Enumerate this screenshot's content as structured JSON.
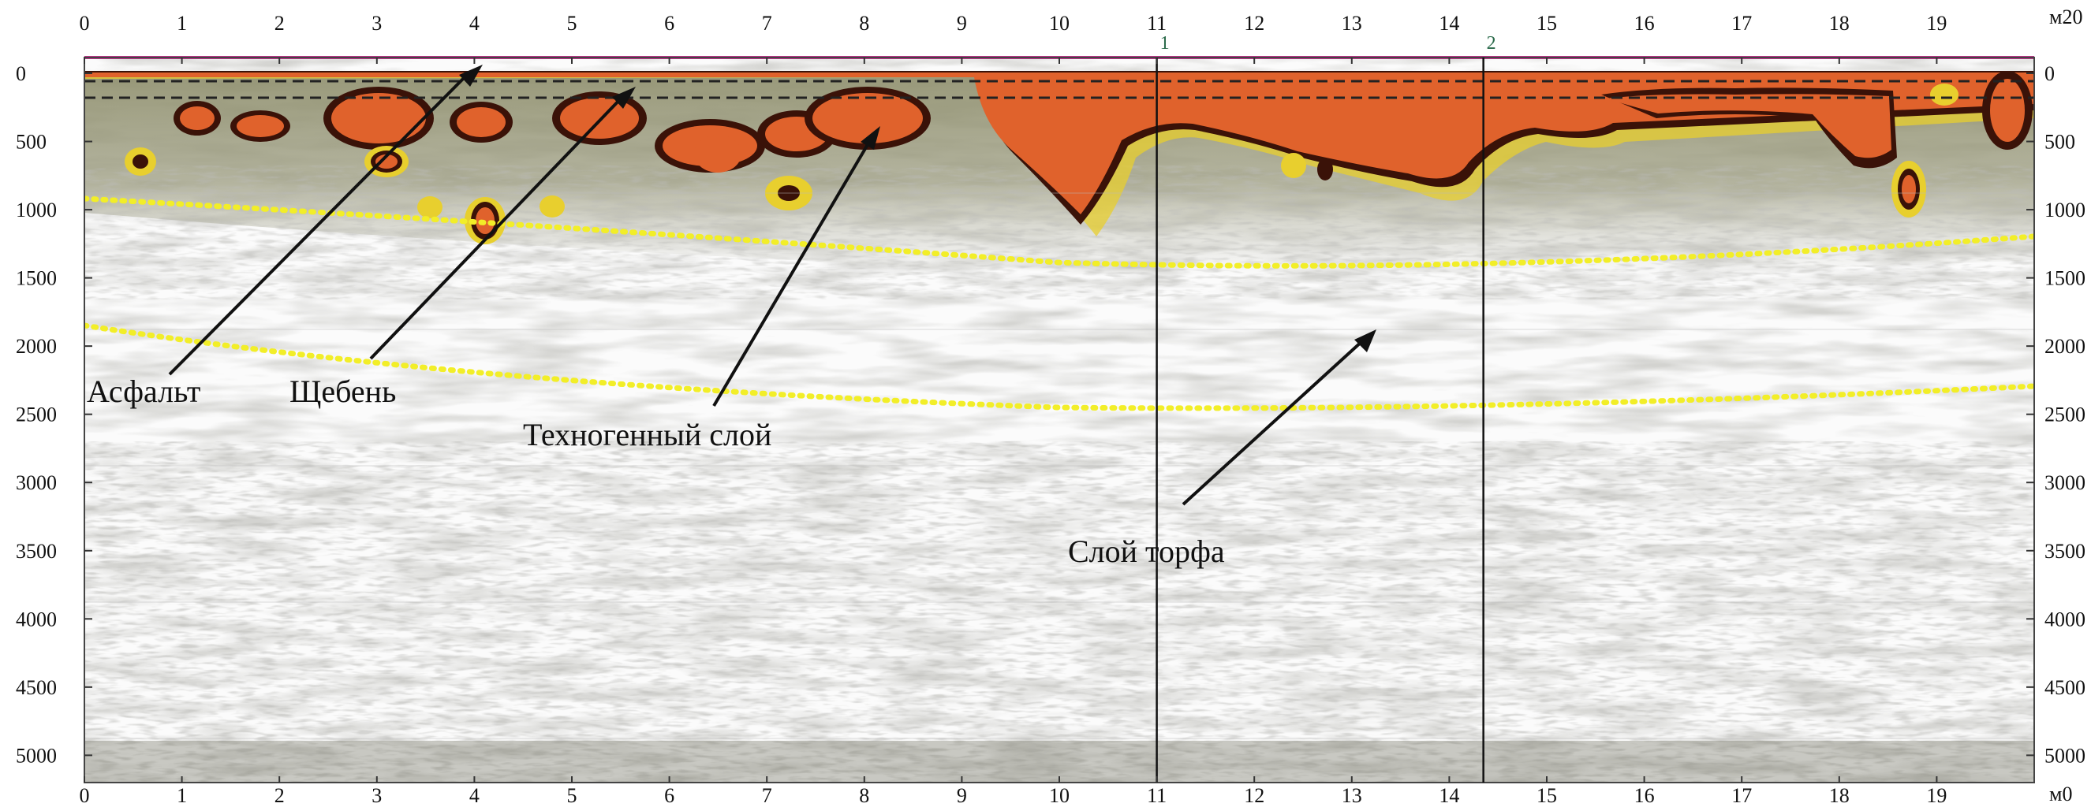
{
  "profile": {
    "x_unit_label": "м20",
    "x_unit_label_bottom": "м0",
    "x_ticks": [
      "0",
      "1",
      "2",
      "3",
      "4",
      "5",
      "6",
      "7",
      "8",
      "9",
      "10",
      "11",
      "12",
      "13",
      "14",
      "15",
      "16",
      "17",
      "18",
      "19"
    ],
    "x_tick_values": [
      0,
      1,
      2,
      3,
      4,
      5,
      6,
      7,
      8,
      9,
      10,
      11,
      12,
      13,
      14,
      15,
      16,
      17,
      18,
      19
    ],
    "bottom_x_ticks": [
      "0",
      "1",
      "2",
      "3",
      "4",
      "5",
      "6",
      "7",
      "8",
      "9",
      "10",
      "11",
      "12",
      "13",
      "14",
      "15",
      "16",
      "17",
      "18",
      "19"
    ],
    "x_range": [
      0,
      20
    ],
    "y_ticks": [
      "0",
      "500",
      "1000",
      "1500",
      "2000",
      "2500",
      "3000",
      "3500",
      "4000",
      "4500",
      "5000"
    ],
    "y_tick_values": [
      0,
      500,
      1000,
      1500,
      2000,
      2500,
      3000,
      3500,
      4000,
      4500,
      5000
    ],
    "y_range": [
      0,
      5200
    ],
    "markers": [
      {
        "label": "1",
        "x": 11.0
      },
      {
        "label": "2",
        "x": 14.35
      }
    ],
    "colors": {
      "top_line": "#c0338a",
      "orange_anomaly": "#e0622c",
      "dark_anomaly": "#3a1208",
      "yellow_halo": "#e8cf2e",
      "gray_noise": "#8c8c7c",
      "olive_zone": "#9a9a72",
      "boundary_dotted": "#f2ee28"
    }
  },
  "annotations": [
    {
      "label": "Асфальт",
      "x": 4.0
    },
    {
      "label": "Щебень",
      "x": 5.7
    },
    {
      "label": "Техногенный слой",
      "x": 8.0
    },
    {
      "label": "Слой торфа",
      "x": 13.3
    }
  ]
}
